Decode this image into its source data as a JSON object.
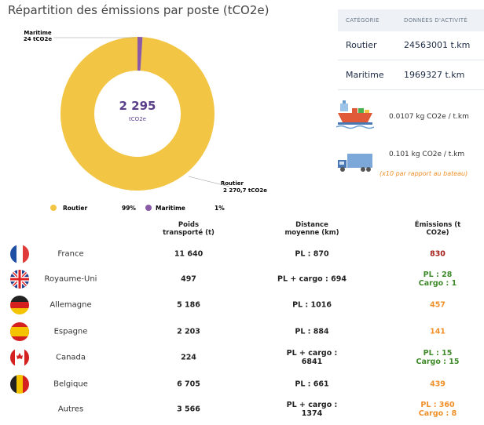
{
  "chart_data": {
    "type": "donut",
    "title": "Répartition des émissions par poste (tCO2e)",
    "categories": [
      "Routier",
      "Maritime"
    ],
    "values": [
      2270.7,
      24
    ],
    "value_labels": [
      "2 270,7 tCO2e",
      "24 tCO2e"
    ],
    "colors": [
      "#f3c545",
      "#8a5aa6"
    ],
    "shares": [
      "99%",
      "1%"
    ],
    "total": "2 295",
    "total_unit": "tCO2e"
  },
  "activity": {
    "headers": [
      "CATÉGORIE",
      "DONNÉES D'ACTIVITÉ"
    ],
    "rows": [
      [
        "Routier",
        "24563001 t.km"
      ],
      [
        "Maritime",
        "1969327 t.km"
      ]
    ]
  },
  "factors": {
    "ship": "0.0107 kg CO2e / t.km",
    "truck": "0.101 kg CO2e / t.km",
    "truck_note": "(x10 par rapport au bateau)"
  },
  "table": {
    "headers": [
      "Poids transporté (t)",
      "Distance moyenne (km)",
      "Émissions (t CO2e)"
    ],
    "rows": [
      {
        "country": "France",
        "weight": "11 640",
        "distance": "PL : 870",
        "emissions": [
          "830"
        ],
        "color": "#a3201b"
      },
      {
        "country": "Royaume-Uni",
        "weight": "497",
        "distance": "PL + cargo : 694",
        "emissions": [
          "PL : 28",
          "Cargo : 1"
        ],
        "color": "#3f8a2a"
      },
      {
        "country": "Allemagne",
        "weight": "5 186",
        "distance": "PL : 1016",
        "emissions": [
          "457"
        ],
        "color": "#f0902a"
      },
      {
        "country": "Espagne",
        "weight": "2 203",
        "distance": "PL : 884",
        "emissions": [
          "141"
        ],
        "color": "#f0902a"
      },
      {
        "country": "Canada",
        "weight": "224",
        "distance": "PL + cargo : 6841",
        "emissions": [
          "PL : 15",
          "Cargo : 15"
        ],
        "color": "#3f8a2a"
      },
      {
        "country": "Belgique",
        "weight": "6 705",
        "distance": "PL : 661",
        "emissions": [
          "439"
        ],
        "color": "#f0902a"
      },
      {
        "country": "Autres",
        "weight": "3 566",
        "distance": "PL + cargo : 1374",
        "emissions": [
          "PL : 360",
          "Cargo : 8"
        ],
        "color": "#f0902a"
      }
    ]
  }
}
